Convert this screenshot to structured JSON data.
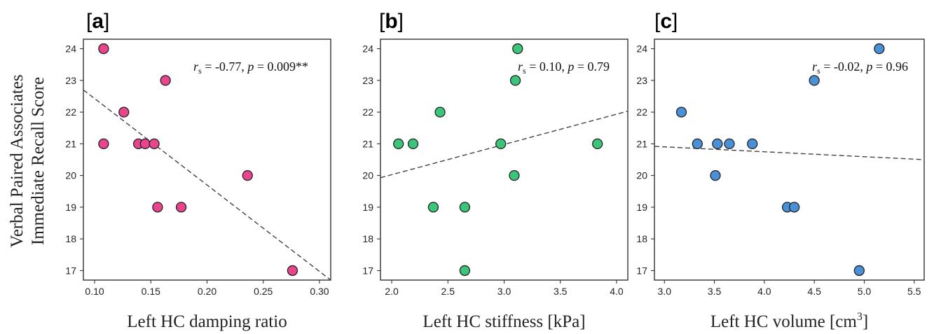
{
  "ylabel_lines": [
    "Verbal Paired Associates",
    "Immediate Recall Score"
  ],
  "colors": {
    "a": "#e8458c",
    "b": "#3cc47a",
    "c": "#4a90d6"
  },
  "chart_data": [
    {
      "type": "scatter",
      "panel": "a",
      "panel_label": "a",
      "xlabel": "Left HC damping ratio",
      "ylabel": "Verbal Paired Associates Immediate Recall Score",
      "xlim": [
        0.09,
        0.31
      ],
      "ylim": [
        16.7,
        24.3
      ],
      "xticks": [
        0.1,
        0.15,
        0.2,
        0.25,
        0.3
      ],
      "xtick_labels": [
        "0.10",
        "0.15",
        "0.20",
        "0.25",
        "0.30"
      ],
      "yticks": [
        17,
        18,
        19,
        20,
        21,
        22,
        23,
        24
      ],
      "points": [
        [
          0.108,
          24
        ],
        [
          0.163,
          23
        ],
        [
          0.126,
          22
        ],
        [
          0.108,
          21
        ],
        [
          0.139,
          21
        ],
        [
          0.145,
          21
        ],
        [
          0.153,
          21
        ],
        [
          0.236,
          20
        ],
        [
          0.156,
          19
        ],
        [
          0.177,
          19
        ],
        [
          0.276,
          17
        ]
      ],
      "trendline": [
        [
          0.09,
          22.7
        ],
        [
          0.31,
          16.7
        ]
      ],
      "annotation": {
        "r_label": "r",
        "r_sub": "s",
        "r_value": " = -0.77, ",
        "p_label": "p",
        "p_value": " = 0.009**"
      }
    },
    {
      "type": "scatter",
      "panel": "b",
      "panel_label": "b",
      "xlabel": "Left HC stiffness [kPa]",
      "ylabel": "Verbal Paired Associates Immediate Recall Score",
      "xlim": [
        1.9,
        4.1
      ],
      "ylim": [
        16.7,
        24.3
      ],
      "xticks": [
        2.0,
        2.5,
        3.0,
        3.5,
        4.0
      ],
      "xtick_labels": [
        "2.0",
        "2.5",
        "3.0",
        "3.5",
        "4.0"
      ],
      "yticks": [
        17,
        18,
        19,
        20,
        21,
        22,
        23,
        24
      ],
      "points": [
        [
          3.12,
          24
        ],
        [
          3.1,
          23
        ],
        [
          2.43,
          22
        ],
        [
          2.06,
          21
        ],
        [
          2.19,
          21
        ],
        [
          2.97,
          21
        ],
        [
          3.83,
          21
        ],
        [
          3.09,
          20
        ],
        [
          2.37,
          19
        ],
        [
          2.65,
          19
        ],
        [
          2.65,
          17
        ]
      ],
      "trendline": [
        [
          1.9,
          19.93
        ],
        [
          4.1,
          22.03
        ]
      ],
      "annotation": {
        "r_label": "r",
        "r_sub": "s",
        "r_value": " = 0.10, ",
        "p_label": "p",
        "p_value": " = 0.79"
      }
    },
    {
      "type": "scatter",
      "panel": "c",
      "panel_label": "c",
      "xlabel": "Left HC volume [cm",
      "xlabel_sup": "3",
      "xlabel_end": "]",
      "ylabel": "Verbal Paired Associates Immediate Recall Score",
      "xlim": [
        2.9,
        5.6
      ],
      "ylim": [
        16.7,
        24.3
      ],
      "xticks": [
        3.0,
        3.5,
        4.0,
        4.5,
        5.0,
        5.5
      ],
      "xtick_labels": [
        "3.0",
        "3.5",
        "4.0",
        "4.5",
        "5.0",
        "5.5"
      ],
      "yticks": [
        17,
        18,
        19,
        20,
        21,
        22,
        23,
        24
      ],
      "points": [
        [
          5.15,
          24
        ],
        [
          4.5,
          23
        ],
        [
          3.17,
          22
        ],
        [
          3.33,
          21
        ],
        [
          3.53,
          21
        ],
        [
          3.65,
          21
        ],
        [
          3.88,
          21
        ],
        [
          3.51,
          20
        ],
        [
          4.23,
          19
        ],
        [
          4.3,
          19
        ],
        [
          4.95,
          17
        ]
      ],
      "trendline": [
        [
          2.9,
          20.92
        ],
        [
          5.6,
          20.5
        ]
      ],
      "annotation": {
        "r_label": "r",
        "r_sub": "s",
        "r_value": " = -0.02, ",
        "p_label": "p",
        "p_value": " = 0.96"
      }
    }
  ]
}
